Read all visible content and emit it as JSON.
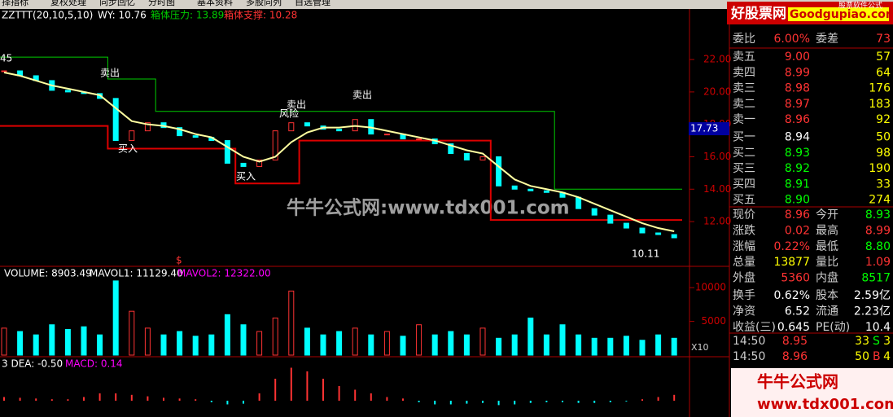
{
  "toolbar": [
    "择指标",
    "复权处理",
    "同步回忆",
    "分时图",
    "基本资料",
    "多股同列",
    "自选管理"
  ],
  "logo": {
    "title": "好股票网",
    "domain": "Goodgupiao.com",
    "subtitle": "股票软件公式"
  },
  "price_chart": {
    "indicator": "ZZTTT(20,10,5,10)",
    "wy": "WY: 10.76",
    "resistance_label": "箱体压力: 13.89",
    "support_label": "箱体支撑: 10.28",
    "ylim": [
      9.34,
      25.07
    ],
    "yticks": [
      {
        "value": 22,
        "label": "22.00"
      },
      {
        "value": 20,
        "label": "20.00"
      },
      {
        "value": 18,
        "label": "18.00"
      },
      {
        "value": 16,
        "label": "16.00"
      },
      {
        "value": 14,
        "label": "14.00"
      },
      {
        "value": 12,
        "label": "12.00"
      }
    ],
    "current_price": {
      "value": 17.73,
      "label": "17.73"
    },
    "close": [
      21.3,
      21.0,
      20.7,
      20.1,
      20.0,
      19.9,
      19.6,
      17.0,
      17.6,
      18.1,
      17.8,
      17.3,
      17.2,
      17.0,
      15.6,
      15.4,
      15.8,
      17.6,
      18.1,
      17.9,
      17.7,
      17.6,
      18.3,
      17.4,
      17.4,
      17.1,
      17.1,
      16.8,
      16.2,
      15.8,
      16.0,
      14.2,
      14.0,
      13.9,
      13.8,
      13.5,
      12.8,
      12.4,
      11.9,
      11.6,
      11.3,
      11.2,
      11.0
    ],
    "ma": [
      21.2,
      21.0,
      20.7,
      20.4,
      20.2,
      20.0,
      19.8,
      19.0,
      18.2,
      18.0,
      17.9,
      17.7,
      17.4,
      17.2,
      16.6,
      16.0,
      15.7,
      16.0,
      16.9,
      17.5,
      17.8,
      17.8,
      17.9,
      17.8,
      17.6,
      17.4,
      17.2,
      17.0,
      16.7,
      16.4,
      16.2,
      15.4,
      14.6,
      14.2,
      14.0,
      13.8,
      13.5,
      13.1,
      12.7,
      12.3,
      11.9,
      11.6,
      11.4
    ],
    "resistance": [
      22.15,
      22.15,
      22.15,
      22.15,
      22.15,
      22.15,
      22.15,
      20.8,
      20.8,
      20.8,
      18.8,
      18.8,
      18.8,
      18.8,
      18.8,
      18.8,
      18.8,
      18.8,
      18.8,
      18.8,
      18.8,
      18.8,
      18.8,
      18.8,
      18.8,
      18.8,
      18.8,
      18.8,
      18.8,
      18.8,
      18.8,
      18.8,
      18.8,
      18.8,
      18.8,
      14.0,
      14.0,
      14.0,
      14.0,
      14.0,
      14.0,
      14.0,
      14.0
    ],
    "support": [
      17.9,
      17.9,
      17.9,
      17.9,
      17.9,
      17.9,
      17.9,
      16.5,
      16.5,
      16.5,
      16.5,
      16.5,
      16.5,
      16.5,
      16.5,
      14.35,
      14.35,
      14.35,
      14.35,
      17.0,
      17.0,
      17.0,
      17.0,
      17.0,
      17.0,
      17.0,
      17.0,
      17.0,
      17.0,
      17.0,
      17.0,
      12.1,
      12.1,
      12.1,
      12.1,
      12.1,
      12.1,
      12.1,
      12.1,
      12.1,
      12.1,
      12.1,
      12.1
    ],
    "annotations": [
      "45",
      "卖出",
      "风险",
      "卖出",
      "卖出",
      "买入",
      "买入",
      "10.11",
      "$"
    ]
  },
  "watermark": "牛牛公式网:www.tdx001.com",
  "volume_chart": {
    "volume_label": "VOLUME: 8903.49",
    "mavol1_label": "MAVOL1: 11129.40",
    "mavol2_label": "MAVOL2: 12322.00",
    "ylim": [
      0,
      12800
    ],
    "yticks": [
      10000,
      5000
    ],
    "multiplier": "X10",
    "values": [
      4000,
      3500,
      3000,
      4500,
      3800,
      4200,
      3000,
      11000,
      6500,
      4000,
      3000,
      3500,
      2800,
      3000,
      6000,
      4500,
      3500,
      5500,
      9500,
      4000,
      3000,
      3500,
      4000,
      3000,
      3500,
      2800,
      4500,
      3000,
      3500,
      3000,
      4000,
      2500,
      3000,
      5500,
      3000,
      4500,
      3000,
      2500,
      2500,
      2800,
      2200,
      3000,
      2500
    ]
  },
  "macd_chart": {
    "dea_label": "3 DEA: -0.50",
    "macd_label": "MACD: 0.14",
    "values": [
      0.05,
      0.04,
      0.03,
      0.02,
      0.02,
      0.05,
      0.1,
      0.1,
      0.08,
      0.06,
      0.04,
      0.03,
      0.02,
      -0.02,
      -0.05,
      -0.04,
      0.1,
      0.3,
      0.45,
      0.4,
      0.3,
      0.2,
      0.15,
      0.1,
      0.05,
      0.03,
      -0.02,
      -0.05,
      -0.05,
      -0.04,
      -0.03,
      -0.06,
      -0.05,
      -0.03,
      -0.02,
      -0.02,
      -0.03,
      -0.03,
      -0.02,
      -0.01,
      0.02,
      0.05,
      0.08
    ]
  },
  "quote": {
    "ratio": [
      "委比",
      "6.00%",
      "委差",
      "73"
    ],
    "book": [
      [
        "卖五",
        "9.00",
        "57"
      ],
      [
        "卖四",
        "8.99",
        "64"
      ],
      [
        "卖三",
        "8.98",
        "176"
      ],
      [
        "卖二",
        "8.97",
        "183"
      ],
      [
        "卖一",
        "8.96",
        "92"
      ],
      [
        "买一",
        "8.94",
        "50"
      ],
      [
        "买二",
        "8.93",
        "98"
      ],
      [
        "买三",
        "8.92",
        "190"
      ],
      [
        "买四",
        "8.91",
        "33"
      ],
      [
        "买五",
        "8.90",
        "274"
      ]
    ],
    "stats": [
      [
        "现价",
        "8.96",
        "今开",
        "8.93"
      ],
      [
        "涨跌",
        "0.02",
        "最高",
        "8.99"
      ],
      [
        "涨幅",
        "0.22%",
        "最低",
        "8.80"
      ],
      [
        "总量",
        "13877",
        "量比",
        "1.09"
      ],
      [
        "外盘",
        "5360",
        "内盘",
        "8517"
      ],
      [
        "换手",
        "0.62%",
        "股本",
        "2.59亿"
      ],
      [
        "净资",
        "6.52",
        "流通",
        "2.23亿"
      ],
      [
        "收益(三)",
        "0.645",
        "PE(动)",
        "10.4"
      ]
    ],
    "ticks": [
      [
        "14:50",
        "8.95",
        "33",
        "S",
        "3"
      ],
      [
        "14:50",
        "8.96",
        "50",
        "B",
        "4"
      ]
    ]
  },
  "footer_logo": {
    "title": "牛牛公式网",
    "url": "www.tdx001.com"
  }
}
